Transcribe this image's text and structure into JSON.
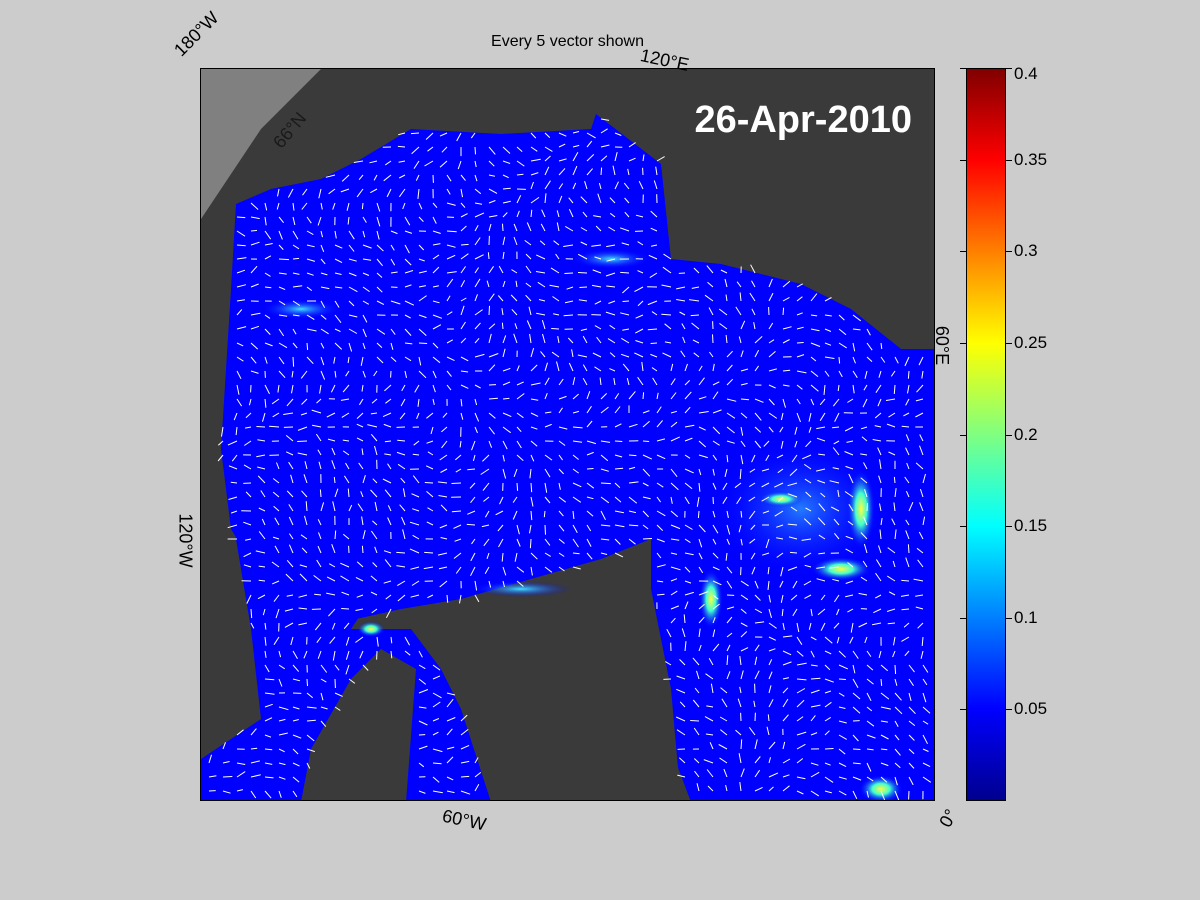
{
  "figure": {
    "title": "Every 5 vector shown",
    "date": "26-Apr-2010"
  },
  "map": {
    "type": "polar-stereographic",
    "coordinate_labels": {
      "lon_180w": "180°W",
      "lon_120e": "120°E",
      "lat_66n": "66°N",
      "lon_60e": "60°E",
      "lon_120w": "120°W",
      "lon_60w": "60°W",
      "lon_0": "0°"
    },
    "colors": {
      "land": "#3a3a3a",
      "ocean_low": "#0000ff",
      "vectors": "#ffffff",
      "figure_background": "#cccccc"
    }
  },
  "colorbar": {
    "min": 0,
    "max": 0.4,
    "colormap": "jet",
    "ticks": [
      "0.4",
      "0.35",
      "0.3",
      "0.25",
      "0.2",
      "0.15",
      "0.1",
      "0.05"
    ]
  }
}
